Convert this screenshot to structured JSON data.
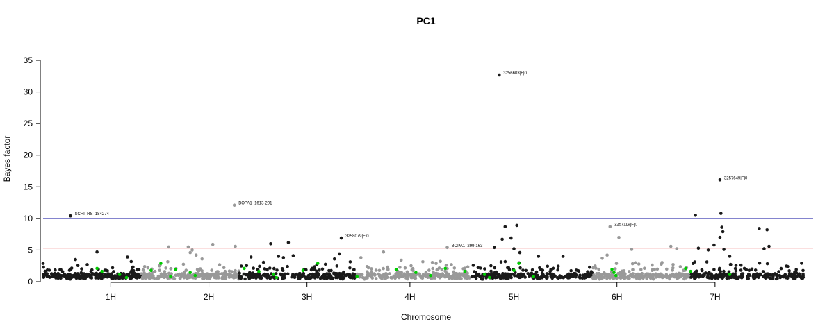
{
  "chart_data": {
    "type": "scatter",
    "title": "PC1",
    "xlabel": "Chromosome",
    "ylabel": "Bayes factor",
    "ylim": [
      0,
      35
    ],
    "yticks": [
      0,
      5,
      10,
      15,
      20,
      25,
      30,
      35
    ],
    "xlim": [
      0,
      7.85
    ],
    "chromosomes": [
      {
        "name": "1H",
        "start": 0.0,
        "end": 1.0,
        "tick": 0.69,
        "color": "#1a1a1a"
      },
      {
        "name": "2H",
        "start": 1.0,
        "end": 2.0,
        "tick": 1.69,
        "color": "#999999"
      },
      {
        "name": "3H",
        "start": 2.0,
        "end": 3.2,
        "tick": 2.69,
        "color": "#1a1a1a"
      },
      {
        "name": "4H",
        "start": 3.2,
        "end": 4.35,
        "tick": 3.74,
        "color": "#999999"
      },
      {
        "name": "5H",
        "start": 4.35,
        "end": 5.6,
        "tick": 4.8,
        "color": "#1a1a1a"
      },
      {
        "name": "6H",
        "start": 5.6,
        "end": 6.6,
        "tick": 5.85,
        "color": "#999999"
      },
      {
        "name": "7H",
        "start": 6.6,
        "end": 7.75,
        "tick": 6.85,
        "color": "#1a1a1a"
      }
    ],
    "thresholds": [
      {
        "value": 10.0,
        "color": "#3b3bb0"
      },
      {
        "value": 5.3,
        "color": "#f08080"
      }
    ],
    "highlight_color": "#00cc00",
    "labeled_points": [
      {
        "x": 0.28,
        "y": 10.4,
        "label": "SCRI_RS_184274",
        "color": "#1a1a1a"
      },
      {
        "x": 1.95,
        "y": 12.1,
        "label": "BOPA1_1613-291",
        "color": "#999999"
      },
      {
        "x": 3.04,
        "y": 6.9,
        "label": "3258079|F|0",
        "color": "#1a1a1a"
      },
      {
        "x": 4.12,
        "y": 5.4,
        "label": "BOPA1_299-163",
        "color": "#999999"
      },
      {
        "x": 4.65,
        "y": 32.7,
        "label": "3256603|F|0",
        "color": "#1a1a1a"
      },
      {
        "x": 5.78,
        "y": 8.7,
        "label": "3257119|F|0",
        "color": "#999999"
      },
      {
        "x": 6.9,
        "y": 16.1,
        "label": "3257649|F|0",
        "color": "#1a1a1a"
      }
    ],
    "notable_points": [
      {
        "x": 0.0,
        "y": 2.9
      },
      {
        "x": 0.33,
        "y": 3.5
      },
      {
        "x": 0.45,
        "y": 2.7
      },
      {
        "x": 0.55,
        "y": 4.7
      },
      {
        "x": 0.86,
        "y": 3.9
      },
      {
        "x": 0.91,
        "y": 2.2
      },
      {
        "x": 1.28,
        "y": 5.5
      },
      {
        "x": 1.48,
        "y": 5.5
      },
      {
        "x": 1.5,
        "y": 4.6
      },
      {
        "x": 1.52,
        "y": 5.0
      },
      {
        "x": 1.56,
        "y": 4.2
      },
      {
        "x": 1.62,
        "y": 3.6
      },
      {
        "x": 1.73,
        "y": 5.9
      },
      {
        "x": 1.96,
        "y": 5.6
      },
      {
        "x": 2.12,
        "y": 3.9
      },
      {
        "x": 2.32,
        "y": 6.0
      },
      {
        "x": 2.4,
        "y": 4.0
      },
      {
        "x": 2.45,
        "y": 3.8
      },
      {
        "x": 2.5,
        "y": 6.2
      },
      {
        "x": 2.55,
        "y": 4.1
      },
      {
        "x": 2.97,
        "y": 3.6
      },
      {
        "x": 3.02,
        "y": 4.4
      },
      {
        "x": 3.24,
        "y": 3.8
      },
      {
        "x": 3.47,
        "y": 4.7
      },
      {
        "x": 3.65,
        "y": 3.4
      },
      {
        "x": 4.05,
        "y": 3.2
      },
      {
        "x": 4.6,
        "y": 5.4
      },
      {
        "x": 4.68,
        "y": 6.7
      },
      {
        "x": 4.71,
        "y": 8.7
      },
      {
        "x": 4.77,
        "y": 6.9
      },
      {
        "x": 4.8,
        "y": 5.2
      },
      {
        "x": 4.83,
        "y": 8.9
      },
      {
        "x": 4.86,
        "y": 4.6
      },
      {
        "x": 5.05,
        "y": 4.0
      },
      {
        "x": 5.3,
        "y": 4.0
      },
      {
        "x": 5.7,
        "y": 3.7
      },
      {
        "x": 5.75,
        "y": 4.2
      },
      {
        "x": 5.87,
        "y": 7.0
      },
      {
        "x": 6.0,
        "y": 5.1
      },
      {
        "x": 6.4,
        "y": 5.6
      },
      {
        "x": 6.46,
        "y": 5.2
      },
      {
        "x": 6.65,
        "y": 10.5
      },
      {
        "x": 6.68,
        "y": 5.3
      },
      {
        "x": 6.78,
        "y": 5.0
      },
      {
        "x": 6.84,
        "y": 5.8
      },
      {
        "x": 6.9,
        "y": 7.0
      },
      {
        "x": 6.91,
        "y": 10.8
      },
      {
        "x": 6.92,
        "y": 8.6
      },
      {
        "x": 6.93,
        "y": 7.9
      },
      {
        "x": 6.94,
        "y": 5.1
      },
      {
        "x": 7.0,
        "y": 4.0
      },
      {
        "x": 7.3,
        "y": 8.4
      },
      {
        "x": 7.38,
        "y": 8.2
      },
      {
        "x": 7.35,
        "y": 5.2
      },
      {
        "x": 7.4,
        "y": 5.6
      }
    ]
  }
}
